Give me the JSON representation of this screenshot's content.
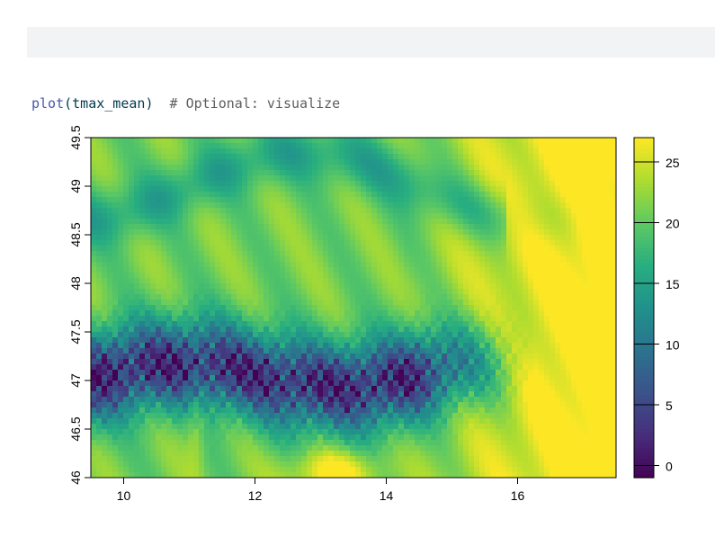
{
  "code": {
    "function": "plot",
    "open_paren": "(",
    "argument": "tmax_mean",
    "close_paren": ")",
    "comment": "# Optional: visualize"
  },
  "chart_data": {
    "type": "heatmap",
    "title": "",
    "xlabel": "",
    "ylabel": "",
    "xlim": [
      9.5,
      17.5
    ],
    "ylim": [
      46.0,
      49.5
    ],
    "x_ticks": [
      "10",
      "12",
      "14",
      "16"
    ],
    "x_tick_values": [
      10,
      12,
      14,
      16
    ],
    "y_ticks": [
      "46",
      "46.5",
      "47",
      "47.5",
      "48",
      "48.5",
      "49",
      "49.5"
    ],
    "y_tick_values": [
      46,
      46.5,
      47,
      47.5,
      48,
      48.5,
      49,
      49.5
    ],
    "colorbar": {
      "ticks": [
        "0",
        "5",
        "10",
        "15",
        "20",
        "25"
      ],
      "tick_values": [
        0,
        5,
        10,
        15,
        20,
        25
      ],
      "min": -1,
      "max": 27,
      "palette": [
        "#440154",
        "#472d7b",
        "#3b528b",
        "#2c728e",
        "#21918c",
        "#28ae80",
        "#5ec962",
        "#addc30",
        "#fde725"
      ]
    },
    "grid": false,
    "legend": "right colorbar"
  }
}
